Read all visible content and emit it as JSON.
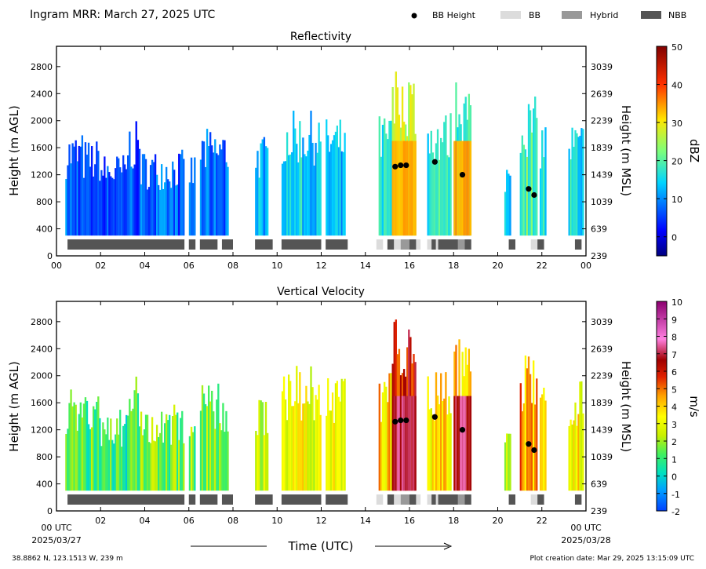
{
  "header": {
    "title": "Ingram MRR:  March 27, 2025 UTC",
    "legend": [
      {
        "label": "BB Height",
        "kind": "dot",
        "color": "#000000"
      },
      {
        "label": "BB",
        "kind": "swatch",
        "color": "#dcdcdc"
      },
      {
        "label": "Hybrid",
        "kind": "swatch",
        "color": "#999999"
      },
      {
        "label": "NBB",
        "kind": "swatch",
        "color": "#555555"
      }
    ]
  },
  "footer": {
    "location": "38.8862 N, 123.1513 W, 239 m",
    "created": "Plot creation date: Mar 29, 2025 13:15:09 UTC",
    "xlabel": "Time (UTC)",
    "start_label": "00 UTC",
    "start_date": "2025/03/27",
    "end_label": "00 UTC",
    "end_date": "2025/03/28"
  },
  "chart_data": [
    {
      "type": "heatmap",
      "title": "Reflectivity",
      "ylabel": "Height (m AGL)",
      "ylabel_right": "Height (m MSL)",
      "colorbar_label": "dBZ",
      "colorbar_ticks": [
        "50",
        "40",
        "30",
        "20",
        "10",
        "0"
      ],
      "colorbar_range": [
        -5,
        50
      ],
      "xlim": [
        0,
        24
      ],
      "ylim": [
        0,
        3100
      ],
      "x_ticks": [
        "00",
        "02",
        "04",
        "06",
        "08",
        "10",
        "12",
        "14",
        "16",
        "18",
        "20",
        "22",
        "00"
      ],
      "y_ticks": [
        "0",
        "400",
        "800",
        "1200",
        "1600",
        "2000",
        "2400",
        "2800"
      ],
      "y_ticks_right": [
        "239",
        "639",
        "1039",
        "1439",
        "1839",
        "2239",
        "2639",
        "3039"
      ],
      "bb_height": [
        {
          "x": 15.35,
          "y": 1320
        },
        {
          "x": 15.6,
          "y": 1340
        },
        {
          "x": 15.85,
          "y": 1340
        },
        {
          "x": 17.15,
          "y": 1390
        },
        {
          "x": 18.4,
          "y": 1200
        },
        {
          "x": 21.4,
          "y": 990
        },
        {
          "x": 21.65,
          "y": 900
        }
      ],
      "classification": [
        {
          "start": 0.5,
          "end": 5.8,
          "class": "NBB"
        },
        {
          "start": 6.0,
          "end": 6.3,
          "class": "NBB"
        },
        {
          "start": 6.5,
          "end": 7.3,
          "class": "NBB"
        },
        {
          "start": 7.5,
          "end": 8.0,
          "class": "NBB"
        },
        {
          "start": 9.0,
          "end": 9.8,
          "class": "NBB"
        },
        {
          "start": 10.2,
          "end": 12.0,
          "class": "NBB"
        },
        {
          "start": 12.2,
          "end": 13.2,
          "class": "NBB"
        },
        {
          "start": 14.5,
          "end": 14.8,
          "class": "BB"
        },
        {
          "start": 15.0,
          "end": 15.3,
          "class": "NBB"
        },
        {
          "start": 15.3,
          "end": 15.6,
          "class": "BB"
        },
        {
          "start": 15.6,
          "end": 16.0,
          "class": "Hybrid"
        },
        {
          "start": 16.0,
          "end": 16.3,
          "class": "NBB"
        },
        {
          "start": 16.3,
          "end": 16.5,
          "class": "BB"
        },
        {
          "start": 16.8,
          "end": 17.0,
          "class": "BB"
        },
        {
          "start": 17.0,
          "end": 17.2,
          "class": "NBB"
        },
        {
          "start": 17.2,
          "end": 17.3,
          "class": "BB"
        },
        {
          "start": 17.3,
          "end": 18.2,
          "class": "NBB"
        },
        {
          "start": 18.2,
          "end": 18.5,
          "class": "Hybrid"
        },
        {
          "start": 18.5,
          "end": 18.8,
          "class": "NBB"
        },
        {
          "start": 20.5,
          "end": 20.8,
          "class": "NBB"
        },
        {
          "start": 21.5,
          "end": 21.8,
          "class": "BB"
        },
        {
          "start": 21.8,
          "end": 22.1,
          "class": "NBB"
        },
        {
          "start": 23.5,
          "end": 23.8,
          "class": "NBB"
        }
      ]
    },
    {
      "type": "heatmap",
      "title": "Vertical Velocity",
      "ylabel": "Height (m AGL)",
      "ylabel_right": "Height (m MSL)",
      "colorbar_label": "m/s",
      "colorbar_ticks": [
        "10",
        "9",
        "8",
        "7",
        "6",
        "5",
        "4",
        "3",
        "2",
        "1",
        "0",
        "-1",
        "-2"
      ],
      "colorbar_range": [
        -2,
        10
      ],
      "xlim": [
        0,
        24
      ],
      "ylim": [
        0,
        3100
      ],
      "x_ticks": [
        "",
        "02",
        "04",
        "06",
        "08",
        "10",
        "12",
        "14",
        "16",
        "18",
        "20",
        "22",
        ""
      ],
      "y_ticks": [
        "0",
        "400",
        "800",
        "1200",
        "1600",
        "2000",
        "2400",
        "2800"
      ],
      "y_ticks_right": [
        "239",
        "639",
        "1039",
        "1439",
        "1839",
        "2239",
        "2639",
        "3039"
      ],
      "bb_height": [
        {
          "x": 15.35,
          "y": 1320
        },
        {
          "x": 15.6,
          "y": 1340
        },
        {
          "x": 15.85,
          "y": 1340
        },
        {
          "x": 17.15,
          "y": 1390
        },
        {
          "x": 18.4,
          "y": 1200
        },
        {
          "x": 21.4,
          "y": 990
        },
        {
          "x": 21.65,
          "y": 900
        }
      ],
      "classification": [
        {
          "start": 0.5,
          "end": 5.8,
          "class": "NBB"
        },
        {
          "start": 6.0,
          "end": 6.3,
          "class": "NBB"
        },
        {
          "start": 6.5,
          "end": 7.3,
          "class": "NBB"
        },
        {
          "start": 7.5,
          "end": 8.0,
          "class": "NBB"
        },
        {
          "start": 9.0,
          "end": 9.8,
          "class": "NBB"
        },
        {
          "start": 10.2,
          "end": 12.0,
          "class": "NBB"
        },
        {
          "start": 12.2,
          "end": 13.2,
          "class": "NBB"
        },
        {
          "start": 14.5,
          "end": 14.8,
          "class": "BB"
        },
        {
          "start": 15.0,
          "end": 15.3,
          "class": "NBB"
        },
        {
          "start": 15.3,
          "end": 15.6,
          "class": "BB"
        },
        {
          "start": 15.6,
          "end": 16.0,
          "class": "Hybrid"
        },
        {
          "start": 16.0,
          "end": 16.3,
          "class": "NBB"
        },
        {
          "start": 16.3,
          "end": 16.5,
          "class": "BB"
        },
        {
          "start": 16.8,
          "end": 17.0,
          "class": "BB"
        },
        {
          "start": 17.0,
          "end": 17.2,
          "class": "NBB"
        },
        {
          "start": 17.2,
          "end": 17.3,
          "class": "BB"
        },
        {
          "start": 17.3,
          "end": 18.2,
          "class": "NBB"
        },
        {
          "start": 18.2,
          "end": 18.5,
          "class": "Hybrid"
        },
        {
          "start": 18.5,
          "end": 18.8,
          "class": "NBB"
        },
        {
          "start": 20.5,
          "end": 20.8,
          "class": "NBB"
        },
        {
          "start": 21.5,
          "end": 21.8,
          "class": "BB"
        },
        {
          "start": 21.8,
          "end": 22.1,
          "class": "NBB"
        },
        {
          "start": 23.5,
          "end": 23.8,
          "class": "NBB"
        }
      ]
    }
  ]
}
